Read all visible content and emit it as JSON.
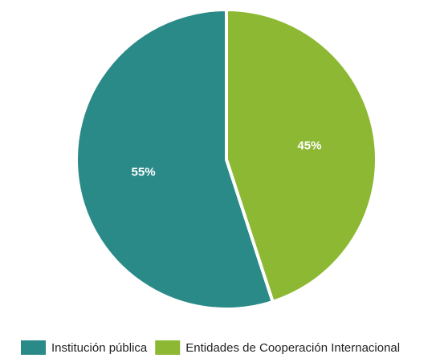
{
  "chart_data": {
    "type": "pie",
    "categories": [
      "Institución pública",
      "Entidades de Cooperación Internacional"
    ],
    "values": [
      55,
      45
    ],
    "labels": [
      "55%",
      "45%"
    ],
    "colors": [
      "#2a8a88",
      "#8db833"
    ],
    "legend_position": "bottom",
    "start": "top",
    "direction": "counterclockwise"
  }
}
